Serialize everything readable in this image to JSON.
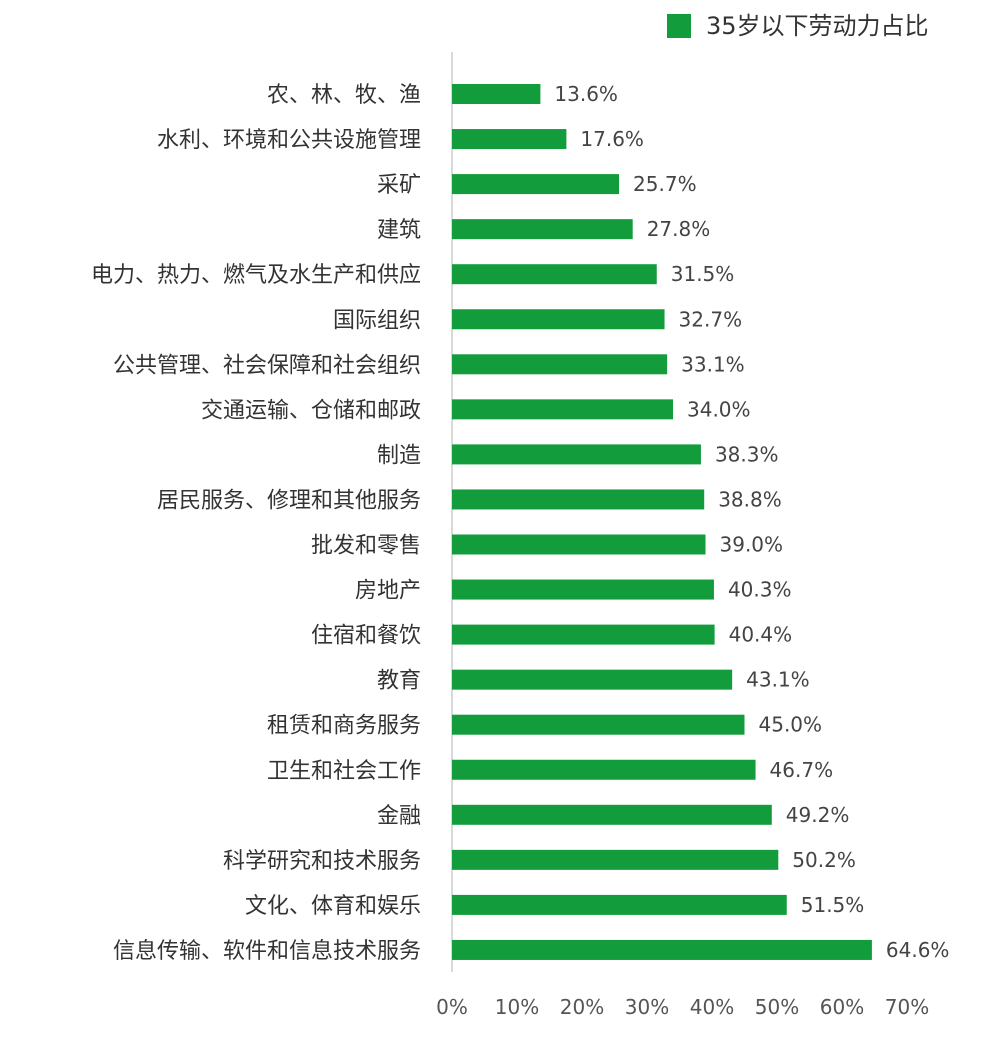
{
  "chart_data": {
    "type": "bar",
    "orientation": "horizontal",
    "categories": [
      "农、林、牧、渔",
      "水利、环境和公共设施管理",
      "采矿",
      "建筑",
      "电力、热力、燃气及水生产和供应",
      "国际组织",
      "公共管理、社会保障和社会组织",
      "交通运输、仓储和邮政",
      "制造",
      "居民服务、修理和其他服务",
      "批发和零售",
      "房地产",
      "住宿和餐饮",
      "教育",
      "租赁和商务服务",
      "卫生和社会工作",
      "金融",
      "科学研究和技术服务",
      "文化、体育和娱乐",
      "信息传输、软件和信息技术服务"
    ],
    "series": [
      {
        "name": "35岁以下劳动力占比",
        "values": [
          13.6,
          17.6,
          25.7,
          27.8,
          31.5,
          32.7,
          33.1,
          34.0,
          38.3,
          38.8,
          39.0,
          40.3,
          40.4,
          43.1,
          45.0,
          46.7,
          49.2,
          50.2,
          51.5,
          64.6
        ],
        "value_labels": [
          "13.6%",
          "17.6%",
          "25.7%",
          "27.8%",
          "31.5%",
          "32.7%",
          "33.1%",
          "34.0%",
          "38.3%",
          "38.8%",
          "39.0%",
          "40.3%",
          "40.4%",
          "43.1%",
          "45.0%",
          "46.7%",
          "49.2%",
          "50.2%",
          "51.5%",
          "64.6%"
        ],
        "color": "#129c3b"
      }
    ],
    "xlim": [
      0,
      70
    ],
    "x_ticks": [
      "0%",
      "10%",
      "20%",
      "30%",
      "40%",
      "50%",
      "60%",
      "70%"
    ],
    "grid": false,
    "legend_position": "top-right",
    "axis_color": "#d9d9d9"
  }
}
